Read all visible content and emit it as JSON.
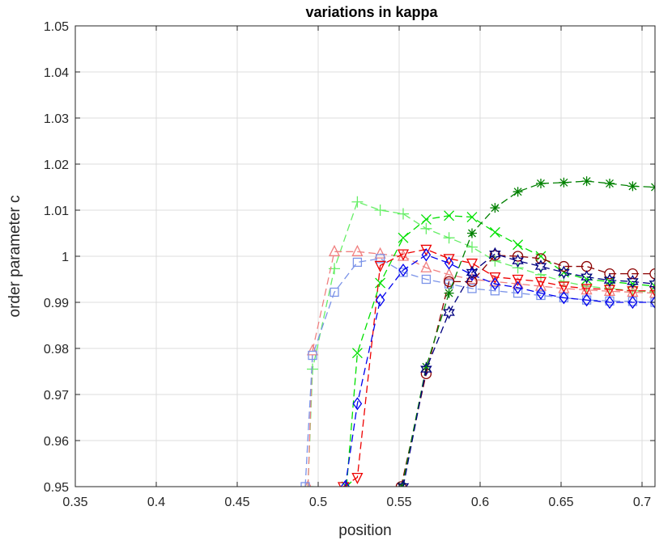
{
  "chart_data": {
    "type": "line",
    "title": "variations in kappa",
    "xlabel": "position",
    "ylabel": "order parameter c",
    "xlim": [
      0.35,
      0.708
    ],
    "ylim": [
      0.95,
      1.05
    ],
    "grid": true,
    "xticks": [
      0.35,
      0.4,
      0.45,
      0.5,
      0.55,
      0.6,
      0.65,
      0.7
    ],
    "xtick_labels": [
      "0.35",
      "0.4",
      "0.45",
      "0.5",
      "0.55",
      "0.6",
      "0.65",
      "0.7"
    ],
    "yticks": [
      0.95,
      0.96,
      0.97,
      0.98,
      0.99,
      1.0,
      1.01,
      1.02,
      1.03,
      1.04,
      1.05
    ],
    "ytick_labels": [
      "0.95",
      "0.96",
      "0.97",
      "0.98",
      "0.99",
      "1",
      "1.01",
      "1.02",
      "1.03",
      "1.04",
      "1.05"
    ],
    "series": [
      {
        "name": "plus",
        "color": "#66ee66",
        "marker": "plus",
        "x": [
          0.4937,
          0.4965,
          0.51,
          0.5242,
          0.5383,
          0.5525,
          0.5667,
          0.5808,
          0.595,
          0.6092,
          0.6233,
          0.6375,
          0.6517,
          0.6658,
          0.68,
          0.6942,
          0.708
        ],
        "y": [
          0.95,
          0.9755,
          0.9973,
          1.0118,
          1.01,
          1.0092,
          1.006,
          1.004,
          1.002,
          0.999,
          0.9975,
          0.996,
          0.9945,
          0.9935,
          0.993,
          0.9925,
          0.9922
        ]
      },
      {
        "name": "triangle",
        "color": "#f08080",
        "marker": "triangle-up",
        "x": [
          0.4937,
          0.4965,
          0.51,
          0.5242,
          0.5383,
          0.5525,
          0.5667,
          0.5808,
          0.595,
          0.6092,
          0.6233,
          0.6375,
          0.6517,
          0.6658,
          0.68,
          0.6942,
          0.708
        ],
        "y": [
          0.95,
          0.9795,
          1.001,
          1.001,
          1.0005,
          1.0,
          0.9975,
          0.996,
          0.995,
          0.9945,
          0.994,
          0.9935,
          0.993,
          0.9927,
          0.9924,
          0.9922,
          0.992
        ]
      },
      {
        "name": "square",
        "color": "#7b93e8",
        "marker": "square",
        "x": [
          0.492,
          0.4965,
          0.51,
          0.5242,
          0.5383,
          0.5525,
          0.5667,
          0.5808,
          0.595,
          0.6092,
          0.6233,
          0.6375,
          0.6517,
          0.6658,
          0.68,
          0.6942,
          0.708
        ],
        "y": [
          0.95,
          0.9785,
          0.9922,
          0.9987,
          0.9995,
          0.9965,
          0.995,
          0.994,
          0.993,
          0.9925,
          0.992,
          0.9915,
          0.991,
          0.9905,
          0.9903,
          0.9902,
          0.99
        ]
      },
      {
        "name": "cross",
        "color": "#00e000",
        "marker": "cross",
        "x": [
          0.5175,
          0.5242,
          0.5383,
          0.5525,
          0.5667,
          0.5808,
          0.595,
          0.6092,
          0.6233,
          0.6375,
          0.6517,
          0.6658,
          0.68,
          0.6942,
          0.708
        ],
        "y": [
          0.95,
          0.979,
          0.9942,
          1.004,
          1.008,
          1.0088,
          1.0085,
          1.0052,
          1.0025,
          1.0,
          0.9965,
          0.995,
          0.9945,
          0.994,
          0.9935
        ]
      },
      {
        "name": "triangle-down",
        "color": "#ee0000",
        "marker": "triangle-down",
        "x": [
          0.5155,
          0.5242,
          0.5383,
          0.5525,
          0.5667,
          0.5808,
          0.595,
          0.6092,
          0.6233,
          0.6375,
          0.6517,
          0.6658,
          0.68,
          0.6942,
          0.708
        ],
        "y": [
          0.95,
          0.952,
          0.998,
          1.0005,
          1.0015,
          0.9995,
          0.9985,
          0.9955,
          0.995,
          0.9945,
          0.9935,
          0.993,
          0.9928,
          0.9925,
          0.9925
        ]
      },
      {
        "name": "diamond",
        "color": "#0000ee",
        "marker": "diamond",
        "x": [
          0.5167,
          0.5242,
          0.5383,
          0.5525,
          0.5667,
          0.5808,
          0.595,
          0.6092,
          0.6233,
          0.6375,
          0.6517,
          0.6658,
          0.68,
          0.6942,
          0.708
        ],
        "y": [
          0.95,
          0.968,
          0.9905,
          0.997,
          1.0003,
          0.9985,
          0.996,
          0.994,
          0.9932,
          0.992,
          0.991,
          0.9905,
          0.99,
          0.99,
          0.99
        ]
      },
      {
        "name": "circle",
        "color": "#8b0000",
        "marker": "circle",
        "x": [
          0.5512,
          0.5667,
          0.5808,
          0.595,
          0.6092,
          0.6233,
          0.6375,
          0.6517,
          0.6658,
          0.68,
          0.6942,
          0.708
        ],
        "y": [
          0.95,
          0.9745,
          0.9945,
          0.9945,
          1.0002,
          1.0,
          0.9995,
          0.9978,
          0.9978,
          0.9962,
          0.9962,
          0.9962
        ]
      },
      {
        "name": "asterisk",
        "color": "#008000",
        "marker": "asterisk",
        "x": [
          0.5518,
          0.5667,
          0.5808,
          0.595,
          0.6092,
          0.6233,
          0.6375,
          0.6517,
          0.6658,
          0.68,
          0.6942,
          0.708
        ],
        "y": [
          0.95,
          0.976,
          0.992,
          1.005,
          1.0105,
          1.014,
          1.0158,
          1.016,
          1.0163,
          1.0158,
          1.0152,
          1.015
        ]
      },
      {
        "name": "hexagram",
        "color": "#000080",
        "marker": "hexagram",
        "x": [
          0.5525,
          0.5667,
          0.5808,
          0.595,
          0.6092,
          0.6233,
          0.6375,
          0.6517,
          0.6658,
          0.68,
          0.6942,
          0.708
        ],
        "y": [
          0.95,
          0.9755,
          0.9878,
          0.9965,
          1.0005,
          0.999,
          0.9978,
          0.9965,
          0.9955,
          0.9948,
          0.9945,
          0.994
        ]
      }
    ]
  }
}
